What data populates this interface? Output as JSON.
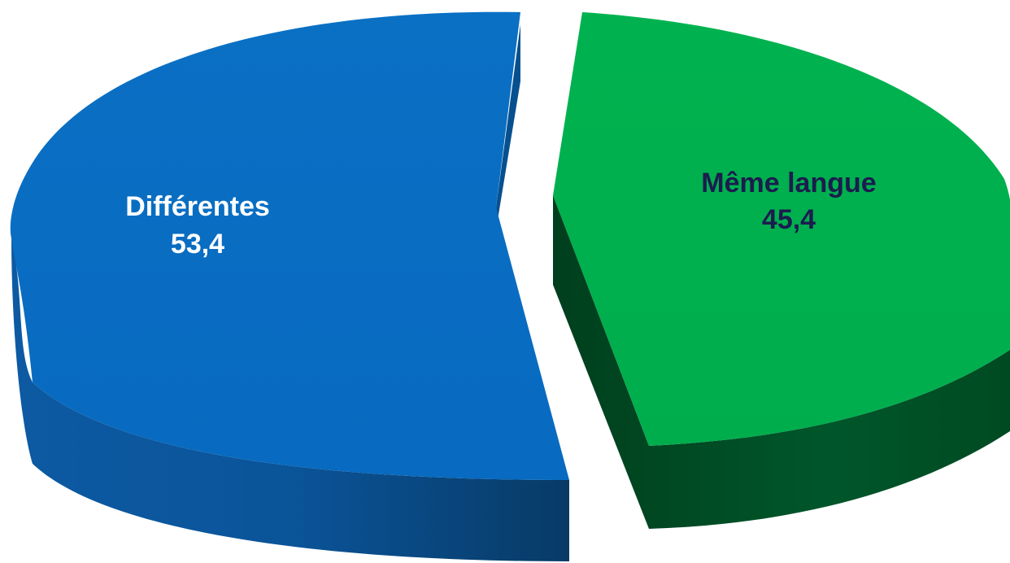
{
  "chart_data": {
    "type": "pie",
    "style": "3d-exploded",
    "slices": [
      {
        "label": "Différentes",
        "value": 53.4,
        "value_text": "53,4",
        "color": "#0a6cc0",
        "label_color": "#ffffff"
      },
      {
        "label": "Même langue",
        "value": 45.4,
        "value_text": "45,4",
        "color": "#00b050",
        "label_color": "#1c1c4e"
      }
    ]
  }
}
